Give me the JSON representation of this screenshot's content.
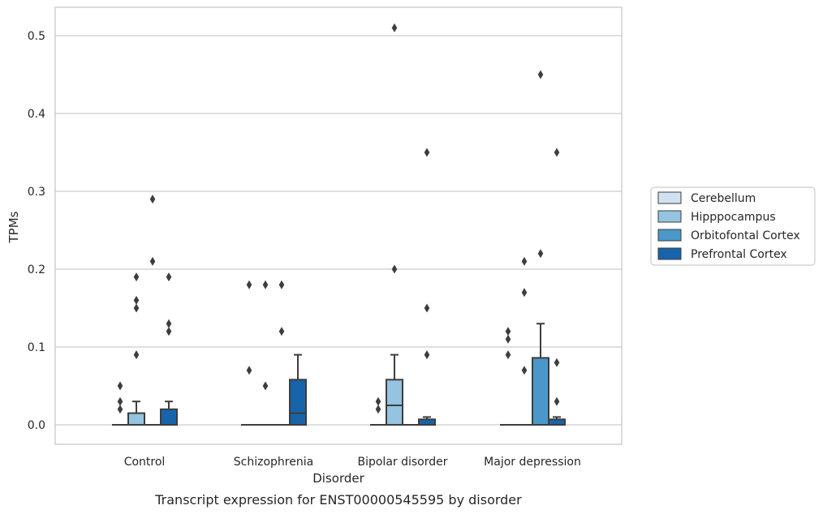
{
  "chart_data": {
    "type": "box",
    "categories": [
      "Control",
      "Schizophrenia",
      "Bipolar disorder",
      "Major depression"
    ],
    "xlabel": "Disorder",
    "ylabel": "TPMs",
    "caption": "Transcript expression for ENST00000545595 by disorder",
    "ylim": [
      -0.025,
      0.54
    ],
    "yticks": [
      0.0,
      0.1,
      0.2,
      0.3,
      0.4,
      0.5
    ],
    "ytick_labels": [
      "0.0",
      "0.1",
      "0.2",
      "0.3",
      "0.4",
      "0.5"
    ],
    "grid": "horizontal",
    "legend_placement": "right",
    "series": [
      {
        "name": "Cerebellum",
        "color": "#d0e1f2",
        "boxes": [
          {
            "q1": 0,
            "median": 0,
            "q3": 0,
            "whisker_low": 0,
            "whisker_high": 0,
            "outliers": [
              0.05,
              0.03,
              0.02
            ]
          },
          {
            "q1": 0,
            "median": 0,
            "q3": 0,
            "whisker_low": 0,
            "whisker_high": 0,
            "outliers": [
              0.18,
              0.07
            ]
          },
          {
            "q1": 0,
            "median": 0,
            "q3": 0,
            "whisker_low": 0,
            "whisker_high": 0,
            "outliers": [
              0.03,
              0.02
            ]
          },
          {
            "q1": 0,
            "median": 0,
            "q3": 0,
            "whisker_low": 0,
            "whisker_high": 0,
            "outliers": [
              0.12,
              0.11,
              0.09
            ]
          }
        ]
      },
      {
        "name": "Hipppocampus",
        "color": "#94c4df",
        "boxes": [
          {
            "q1": 0,
            "median": 0,
            "q3": 0.015,
            "whisker_low": 0,
            "whisker_high": 0.03,
            "outliers": [
              0.19,
              0.16,
              0.15,
              0.09
            ]
          },
          {
            "q1": 0,
            "median": 0,
            "q3": 0,
            "whisker_low": 0,
            "whisker_high": 0,
            "outliers": [
              0.18,
              0.05
            ]
          },
          {
            "q1": 0,
            "median": 0.025,
            "q3": 0.058,
            "whisker_low": 0,
            "whisker_high": 0.09,
            "outliers": [
              0.51,
              0.2
            ]
          },
          {
            "q1": 0,
            "median": 0,
            "q3": 0,
            "whisker_low": 0,
            "whisker_high": 0,
            "outliers": [
              0.21,
              0.17,
              0.07
            ]
          }
        ]
      },
      {
        "name": "Orbitofontal Cortex",
        "color": "#4a98c9",
        "boxes": [
          {
            "q1": 0,
            "median": 0,
            "q3": 0,
            "whisker_low": 0,
            "whisker_high": 0,
            "outliers": [
              0.29,
              0.21
            ]
          },
          {
            "q1": 0,
            "median": 0,
            "q3": 0,
            "whisker_low": 0,
            "whisker_high": 0,
            "outliers": [
              0.18,
              0.12
            ]
          },
          {
            "q1": 0,
            "median": 0,
            "q3": 0,
            "whisker_low": 0,
            "whisker_high": 0,
            "outliers": []
          },
          {
            "q1": 0,
            "median": 0,
            "q3": 0.086,
            "whisker_low": 0,
            "whisker_high": 0.13,
            "outliers": [
              0.45,
              0.22
            ]
          }
        ]
      },
      {
        "name": "Prefrontal Cortex",
        "color": "#1764ab",
        "boxes": [
          {
            "q1": 0,
            "median": 0,
            "q3": 0.02,
            "whisker_low": 0,
            "whisker_high": 0.03,
            "outliers": [
              0.19,
              0.13,
              0.12
            ]
          },
          {
            "q1": 0,
            "median": 0.015,
            "q3": 0.058,
            "whisker_low": 0,
            "whisker_high": 0.09,
            "outliers": []
          },
          {
            "q1": 0,
            "median": 0,
            "q3": 0.007,
            "whisker_low": 0,
            "whisker_high": 0.01,
            "outliers": [
              0.35,
              0.15,
              0.09
            ]
          },
          {
            "q1": 0,
            "median": 0,
            "q3": 0.007,
            "whisker_low": 0,
            "whisker_high": 0.01,
            "outliers": [
              0.35,
              0.08,
              0.03
            ]
          }
        ]
      }
    ]
  },
  "style": {
    "grid_color": "#cccccc",
    "frame_color": "#cccccc",
    "box_edge_color": "#3d3d3d",
    "text_color": "#262626"
  }
}
